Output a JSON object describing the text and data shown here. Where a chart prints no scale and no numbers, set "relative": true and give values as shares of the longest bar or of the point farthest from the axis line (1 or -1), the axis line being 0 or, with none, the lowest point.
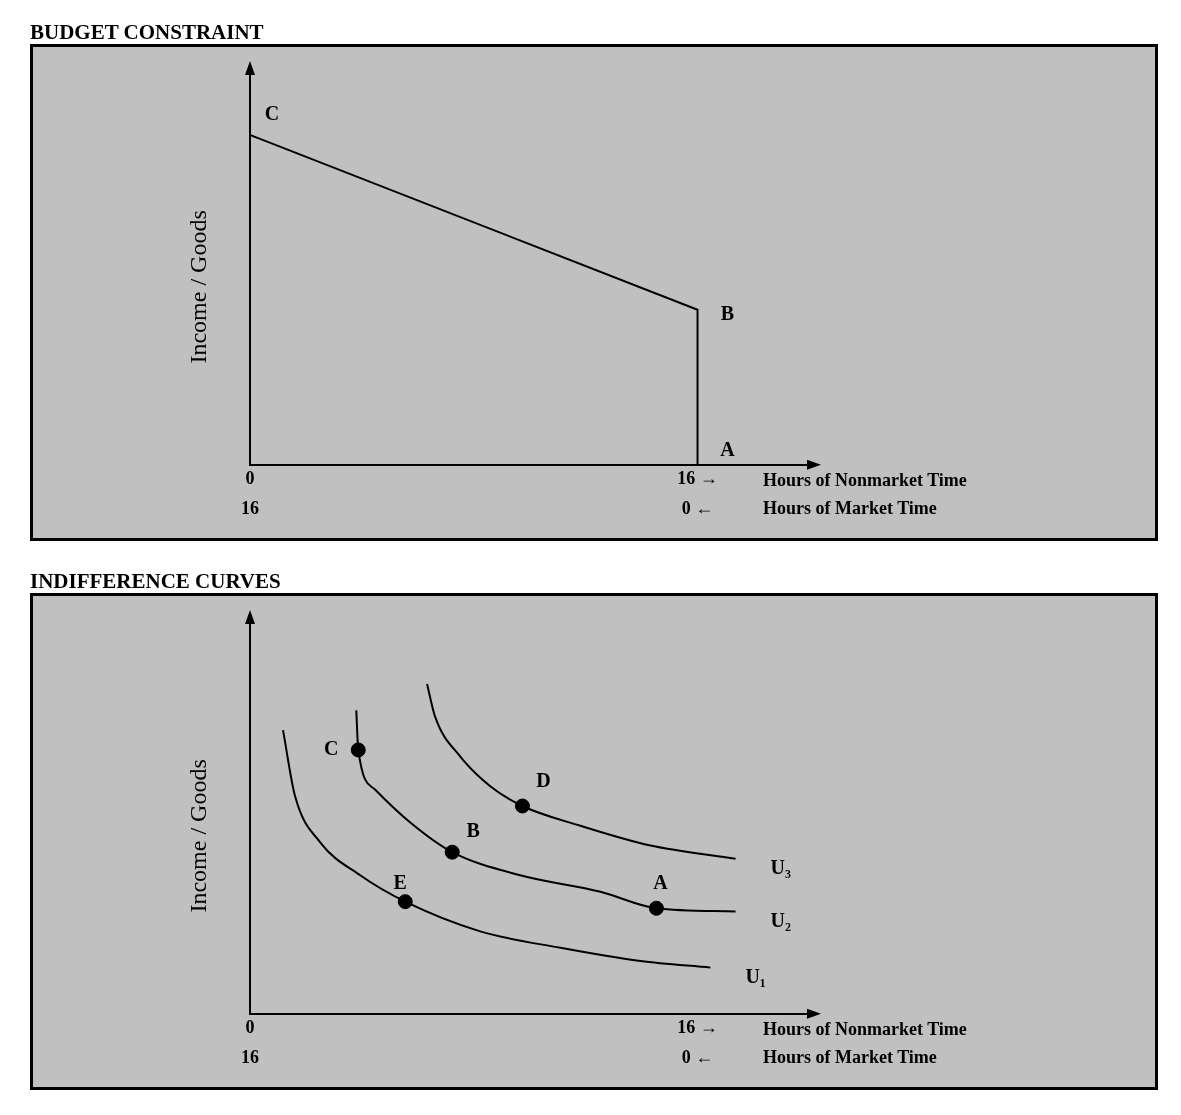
{
  "chart_data": [
    {
      "type": "line",
      "title": "BUDGET CONSTRAINT",
      "ylabel": "Income / Goods",
      "xlabel": "Hours of Nonmarket Time",
      "x2label": "Hours of Market Time",
      "relative": true,
      "xlim": [
        0,
        20.2
      ],
      "xticks": [
        0,
        {
          "value": 16,
          "label": "16 →"
        }
      ],
      "x2lim": [
        16,
        -4.2
      ],
      "x2ticks": [
        16,
        {
          "value": 0,
          "label": "0 ←"
        }
      ],
      "series": [
        {
          "color": "#000000",
          "x": [
            0,
            16,
            16
          ],
          "values": [
            1,
            0.47,
            0
          ]
        }
      ],
      "annotations": [
        {
          "text": "C",
          "x": 0,
          "y": 1
        },
        {
          "text": "B",
          "x": 16,
          "y": 0.47
        },
        {
          "text": "A",
          "x": 16,
          "y": 0
        }
      ]
    },
    {
      "type": "line",
      "title": "INDIFFERENCE CURVES",
      "ylabel": "Income / Goods",
      "xlabel": "Hours of Nonmarket Time",
      "x2label": "Hours of Market Time",
      "relative": true,
      "xlim": [
        0,
        20.2
      ],
      "xticks": [
        0,
        {
          "value": 16,
          "label": "16 →"
        }
      ],
      "x2lim": [
        16,
        -4.2
      ],
      "x2ticks": [
        16,
        {
          "value": 0,
          "label": "0 ←"
        }
      ],
      "series": [
        {
          "name": "U₃",
          "color": "#000000",
          "x": [
            6.33,
            6.62,
            7.52,
            8.59,
            9.74,
            11.81,
            14.32,
            17.36
          ],
          "values": [
            1,
            0.9,
            0.78,
            0.69,
            0.63,
            0.57,
            0.51,
            0.47
          ]
        },
        {
          "name": "U₂",
          "color": "#000000",
          "x": [
            3.8,
            3.87,
            4.47,
            5.73,
            7.23,
            9.66,
            12.53,
            14.53,
            17.36
          ],
          "values": [
            0.92,
            0.8,
            0.68,
            0.58,
            0.49,
            0.42,
            0.37,
            0.32,
            0.31
          ]
        },
        {
          "name": "U₁",
          "color": "#000000",
          "x": [
            1.18,
            1.61,
            2.51,
            3.94,
            5.55,
            8.23,
            11.1,
            13.96,
            16.46
          ],
          "values": [
            0.86,
            0.66,
            0.52,
            0.42,
            0.34,
            0.25,
            0.2,
            0.16,
            0.14
          ]
        },
        {
          "type": "scatter",
          "marker": "circle",
          "color": "#000000",
          "x": [
            3.87,
            9.74,
            7.23,
            5.55,
            14.53
          ],
          "values": [
            0.8,
            0.63,
            0.49,
            0.34,
            0.32
          ]
        }
      ],
      "annotations": [
        {
          "text": "C",
          "x": 3.87,
          "y": 0.8
        },
        {
          "text": "D",
          "x": 9.74,
          "y": 0.63
        },
        {
          "text": "B",
          "x": 7.23,
          "y": 0.49
        },
        {
          "text": "E",
          "x": 5.55,
          "y": 0.34
        },
        {
          "text": "A",
          "x": 14.53,
          "y": 0.32
        }
      ]
    }
  ]
}
